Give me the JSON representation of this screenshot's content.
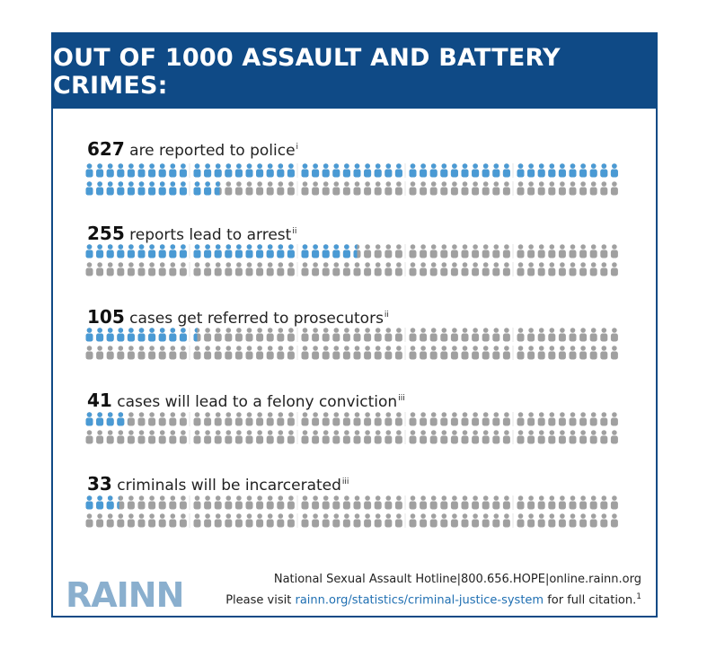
{
  "title": "OUT OF 1000 ASSAULT AND BATTERY CRIMES:",
  "chart_data": {
    "type": "pictogram",
    "total": 1000,
    "rows": [
      {
        "value": 627,
        "label": "are reported to police",
        "note": "i"
      },
      {
        "value": 255,
        "label": "reports lead to arrest",
        "note": "ii"
      },
      {
        "value": 105,
        "label": "cases get referred to prosecutors",
        "note": "ii"
      },
      {
        "value": 41,
        "label": "cases will lead to a felony conviction",
        "note": "iii"
      },
      {
        "value": 33,
        "label": "criminals will be incarcerated",
        "note": "iii"
      }
    ],
    "colors": {
      "filled": "#4a9ad4",
      "empty": "#a0a0a0",
      "banner": "#0f4a86"
    }
  },
  "footer": {
    "logo": "RAINN",
    "hotline": "National Sexual Assault Hotline",
    "phone": "800.656.HOPE",
    "site": "online.rainn.org",
    "visit_prefix": "Please visit ",
    "visit_link": "rainn.org/statistics/criminal-justice-system",
    "visit_suffix": " for full citation.",
    "citation_mark": "1"
  }
}
